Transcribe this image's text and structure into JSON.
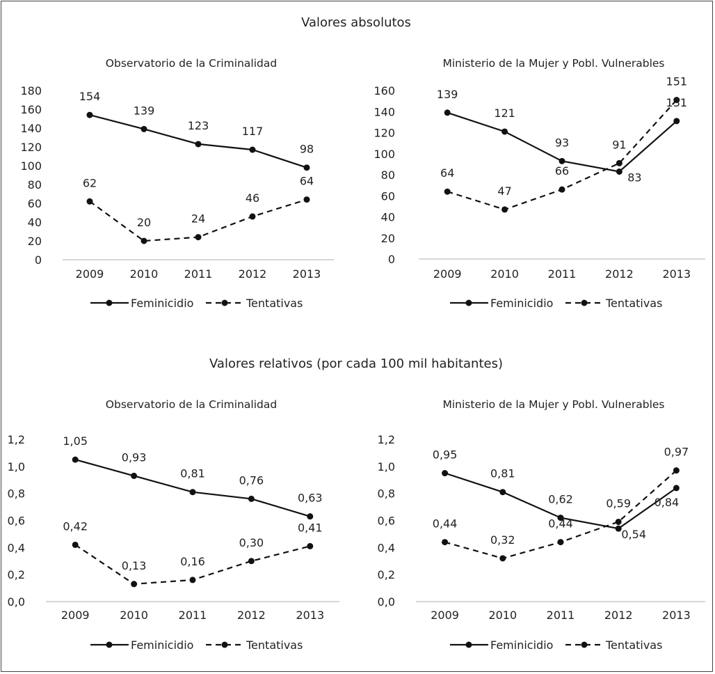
{
  "sections": [
    {
      "title": "Valores absolutos",
      "charts": [
        {
          "title": "Observatorio de la Criminalidad",
          "type": "line",
          "categories": [
            "2009",
            "2010",
            "2011",
            "2012",
            "2013"
          ],
          "ylim": [
            0,
            180
          ],
          "yticks": [
            "0",
            "20",
            "40",
            "60",
            "80",
            "100",
            "120",
            "140",
            "160",
            "180"
          ],
          "series": [
            {
              "name": "Feminicidio",
              "values": [
                154,
                139,
                123,
                117,
                98
              ],
              "labels": [
                "154",
                "139",
                "123",
                "117",
                "98"
              ],
              "style": "solid"
            },
            {
              "name": "Tentativas",
              "values": [
                62,
                20,
                24,
                46,
                64
              ],
              "labels": [
                "62",
                "20",
                "24",
                "46",
                "64"
              ],
              "style": "dashed"
            }
          ]
        },
        {
          "title": "Ministerio de la Mujer y Pobl. Vulnerables",
          "type": "line",
          "categories": [
            "2009",
            "2010",
            "2011",
            "2012",
            "2013"
          ],
          "ylim": [
            0,
            160
          ],
          "yticks": [
            "0",
            "20",
            "40",
            "60",
            "80",
            "100",
            "120",
            "140",
            "160"
          ],
          "series": [
            {
              "name": "Feminicidio",
              "values": [
                139,
                121,
                93,
                83,
                131
              ],
              "labels": [
                "139",
                "121",
                "93",
                "83",
                "131"
              ],
              "style": "solid"
            },
            {
              "name": "Tentativas",
              "values": [
                64,
                47,
                66,
                91,
                151
              ],
              "labels": [
                "64",
                "47",
                "66",
                "91",
                "151"
              ],
              "style": "dashed"
            }
          ]
        }
      ]
    },
    {
      "title": "Valores relativos (por cada 100 mil habitantes)",
      "charts": [
        {
          "title": "Observatorio de la Criminalidad",
          "type": "line",
          "categories": [
            "2009",
            "2010",
            "2011",
            "2012",
            "2013"
          ],
          "ylim": [
            0,
            1.2
          ],
          "yticks": [
            "0,0",
            "0,2",
            "0,4",
            "0,6",
            "0,8",
            "1,0",
            "1,2"
          ],
          "series": [
            {
              "name": "Feminicidio",
              "values": [
                1.05,
                0.93,
                0.81,
                0.76,
                0.63
              ],
              "labels": [
                "1,05",
                "0,93",
                "0,81",
                "0,76",
                "0,63"
              ],
              "style": "solid"
            },
            {
              "name": "Tentativas",
              "values": [
                0.42,
                0.13,
                0.16,
                0.3,
                0.41
              ],
              "labels": [
                "0,42",
                "0,13",
                "0,16",
                "0,30",
                "0,41"
              ],
              "style": "dashed"
            }
          ]
        },
        {
          "title": "Ministerio de la Mujer y Pobl. Vulnerables",
          "type": "line",
          "categories": [
            "2009",
            "2010",
            "2011",
            "2012",
            "2013"
          ],
          "ylim": [
            0,
            1.2
          ],
          "yticks": [
            "0,0",
            "0,2",
            "0,4",
            "0,6",
            "0,8",
            "1,0",
            "1,2"
          ],
          "series": [
            {
              "name": "Feminicidio",
              "values": [
                0.95,
                0.81,
                0.62,
                0.54,
                0.84
              ],
              "labels": [
                "0,95",
                "0,81",
                "0,62",
                "0,54",
                "0,84"
              ],
              "style": "solid"
            },
            {
              "name": "Tentativas",
              "values": [
                0.44,
                0.32,
                0.44,
                0.59,
                0.97
              ],
              "labels": [
                "0,44",
                "0,32",
                "0,44",
                "0,59",
                "0,97"
              ],
              "style": "dashed"
            }
          ]
        }
      ]
    }
  ],
  "chart_data": [
    {
      "type": "line",
      "title": "Observatorio de la Criminalidad",
      "categories": [
        "2009",
        "2010",
        "2011",
        "2012",
        "2013"
      ],
      "ylim": [
        0,
        180
      ],
      "series": [
        {
          "name": "Feminicidio",
          "values": [
            154,
            139,
            123,
            117,
            98
          ]
        },
        {
          "name": "Tentativas",
          "values": [
            62,
            20,
            24,
            46,
            64
          ]
        }
      ],
      "legend": "bottom"
    },
    {
      "type": "line",
      "title": "Ministerio de la Mujer y Pobl. Vulnerables",
      "categories": [
        "2009",
        "2010",
        "2011",
        "2012",
        "2013"
      ],
      "ylim": [
        0,
        160
      ],
      "series": [
        {
          "name": "Feminicidio",
          "values": [
            139,
            121,
            93,
            83,
            131
          ]
        },
        {
          "name": "Tentativas",
          "values": [
            64,
            47,
            66,
            91,
            151
          ]
        }
      ],
      "legend": "bottom"
    },
    {
      "type": "line",
      "title": "Observatorio de la Criminalidad",
      "categories": [
        "2009",
        "2010",
        "2011",
        "2012",
        "2013"
      ],
      "ylim": [
        0,
        1.2
      ],
      "series": [
        {
          "name": "Feminicidio",
          "values": [
            1.05,
            0.93,
            0.81,
            0.76,
            0.63
          ]
        },
        {
          "name": "Tentativas",
          "values": [
            0.42,
            0.13,
            0.16,
            0.3,
            0.41
          ]
        }
      ],
      "legend": "bottom"
    },
    {
      "type": "line",
      "title": "Ministerio de la Mujer y Pobl. Vulnerables",
      "categories": [
        "2009",
        "2010",
        "2011",
        "2012",
        "2013"
      ],
      "ylim": [
        0,
        1.2
      ],
      "series": [
        {
          "name": "Feminicidio",
          "values": [
            0.95,
            0.81,
            0.62,
            0.54,
            0.84
          ]
        },
        {
          "name": "Tentativas",
          "values": [
            0.44,
            0.32,
            0.44,
            0.59,
            0.97
          ]
        }
      ],
      "legend": "bottom"
    }
  ]
}
